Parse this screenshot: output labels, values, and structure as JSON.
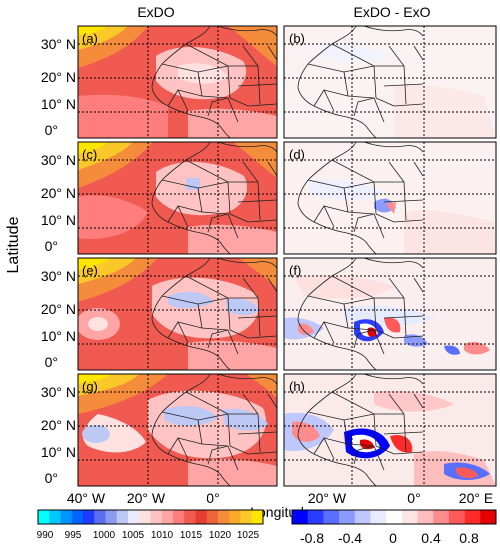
{
  "figure": {
    "columns": [
      "ExDO",
      "ExDO - ExO"
    ],
    "panel_labels": [
      "(a)",
      "(b)",
      "(c)",
      "(d)",
      "(e)",
      "(f)",
      "(g)",
      "(h)"
    ],
    "y_axis_label": "Latitude",
    "x_axis_label": "Longitude",
    "lat_ticks": [
      "30° N",
      "20° N",
      "10° N",
      "0°"
    ],
    "lon_ticks_left": [
      "40° W",
      "20° W",
      "0°"
    ],
    "lon_ticks_right": [
      "20° W",
      "0°",
      "20° E"
    ],
    "colorbar_left": {
      "ticks": [
        "990",
        "995",
        "1000",
        "1005",
        "1010",
        "1015",
        "1020",
        "1025"
      ],
      "colors": [
        "#00ffff",
        "#00c8ff",
        "#0096ff",
        "#0064ff",
        "#1e3cff",
        "#5a6ef0",
        "#8c9bf0",
        "#bec8f5",
        "#ebebff",
        "#ffe1e1",
        "#ffc3c3",
        "#ffa5a5",
        "#ff7d7d",
        "#f05a50",
        "#e63c32",
        "#f0643c",
        "#f58c3c",
        "#faaa28",
        "#fac828",
        "#ffe600"
      ]
    },
    "colorbar_right": {
      "ticks": [
        "-0.8",
        "-0.4",
        "0",
        "0.4",
        "0.8"
      ],
      "colors": [
        "#0000ff",
        "#2a3cff",
        "#5a6eff",
        "#8c9bff",
        "#bec8ff",
        "#e6ebff",
        "#ffffff",
        "#ffe6e6",
        "#ffbebe",
        "#ff8c8c",
        "#ff5a5a",
        "#ff2a2a",
        "#e60000"
      ]
    }
  }
}
